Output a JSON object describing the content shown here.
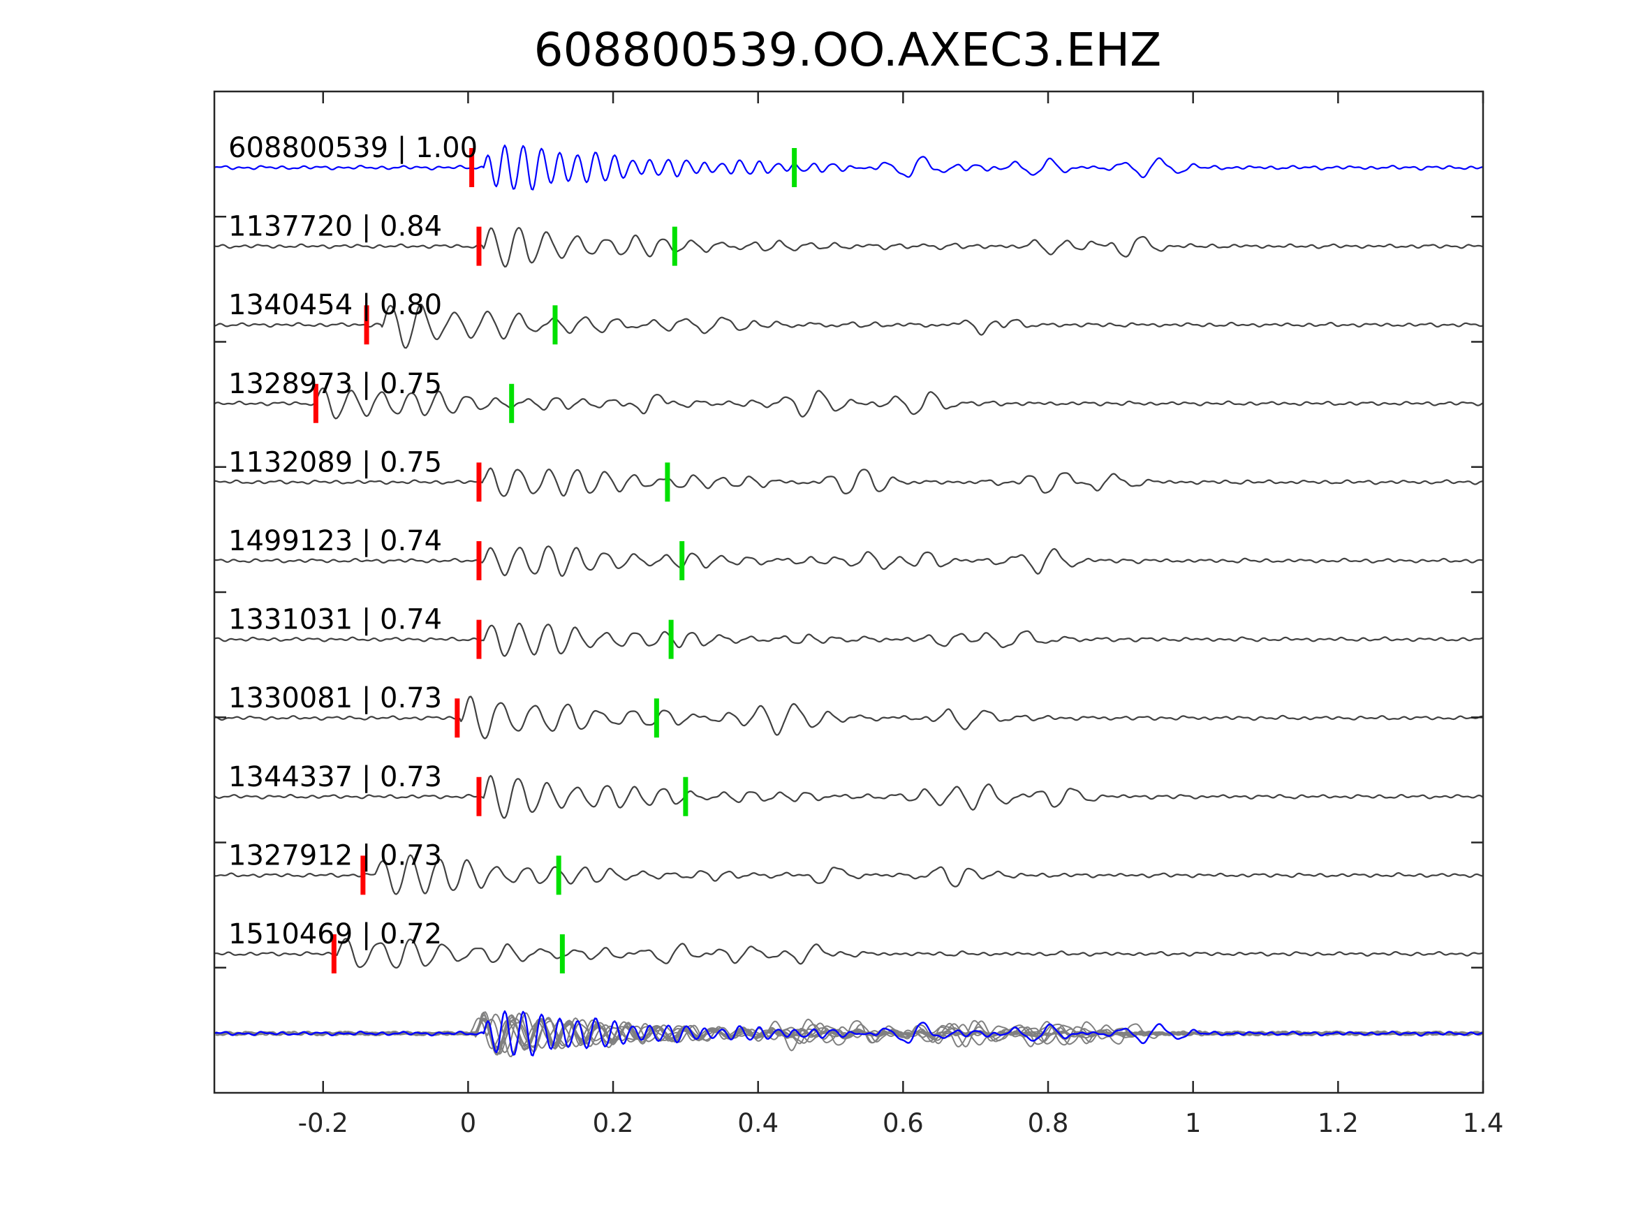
{
  "chart_data": {
    "type": "line",
    "title": "608800539.OO.AXEC3.EHZ",
    "xlabel": "",
    "ylabel": "",
    "xlim": [
      -0.35,
      1.4
    ],
    "x_ticks": [
      -0.2,
      0,
      0.2,
      0.4,
      0.6,
      0.8,
      1,
      1.2,
      1.4
    ],
    "x_tick_labels": [
      "-0.2",
      "0",
      "0.2",
      "0.4",
      "0.6",
      "0.8",
      "1",
      "1.2",
      "1.4"
    ],
    "grid": false,
    "legend": "none",
    "colors": {
      "template": "#0000ff",
      "match": "#404040",
      "stack_match": "#808080",
      "p_pick": "#ff0000",
      "s_pick": "#00e000"
    },
    "traces": [
      {
        "id": "608800539",
        "cc": "1.00",
        "label": "608800539 | 1.00",
        "p_pick": 0.005,
        "s_pick": 0.45,
        "onset": 0.02,
        "period": 0.025,
        "amplitude": 1.0,
        "color": "template"
      },
      {
        "id": "1137720",
        "cc": "0.84",
        "label": "1137720 | 0.84",
        "p_pick": 0.015,
        "s_pick": 0.285,
        "onset": 0.02,
        "period": 0.04,
        "amplitude": 0.8,
        "color": "match"
      },
      {
        "id": "1340454",
        "cc": "0.80",
        "label": "1340454 | 0.80",
        "p_pick": -0.14,
        "s_pick": 0.12,
        "onset": -0.12,
        "period": 0.045,
        "amplitude": 0.9,
        "color": "match"
      },
      {
        "id": "1328973",
        "cc": "0.75",
        "label": "1328973 | 0.75",
        "p_pick": -0.21,
        "s_pick": 0.06,
        "onset": -0.21,
        "period": 0.04,
        "amplitude": 0.75,
        "color": "match"
      },
      {
        "id": "1132089",
        "cc": "0.75",
        "label": "1132089 | 0.75",
        "p_pick": 0.015,
        "s_pick": 0.275,
        "onset": 0.02,
        "period": 0.04,
        "amplitude": 0.75,
        "color": "match"
      },
      {
        "id": "1499123",
        "cc": "0.74",
        "label": "1499123 | 0.74",
        "p_pick": 0.015,
        "s_pick": 0.295,
        "onset": 0.02,
        "period": 0.04,
        "amplitude": 0.75,
        "color": "match"
      },
      {
        "id": "1331031",
        "cc": "0.74",
        "label": "1331031 | 0.74",
        "p_pick": 0.015,
        "s_pick": 0.28,
        "onset": 0.02,
        "period": 0.04,
        "amplitude": 0.75,
        "color": "match"
      },
      {
        "id": "1330081",
        "cc": "0.73",
        "label": "1330081 | 0.73",
        "p_pick": -0.015,
        "s_pick": 0.26,
        "onset": -0.01,
        "period": 0.045,
        "amplitude": 0.85,
        "color": "match"
      },
      {
        "id": "1344337",
        "cc": "0.73",
        "label": "1344337 | 0.73",
        "p_pick": 0.015,
        "s_pick": 0.3,
        "onset": 0.02,
        "period": 0.04,
        "amplitude": 0.85,
        "color": "match"
      },
      {
        "id": "1327912",
        "cc": "0.73",
        "label": "1327912 | 0.73",
        "p_pick": -0.145,
        "s_pick": 0.125,
        "onset": -0.13,
        "period": 0.04,
        "amplitude": 0.9,
        "color": "match"
      },
      {
        "id": "1510469",
        "cc": "0.72",
        "label": "1510469 | 0.72",
        "p_pick": -0.185,
        "s_pick": 0.13,
        "onset": -0.18,
        "period": 0.045,
        "amplitude": 0.75,
        "color": "match"
      }
    ]
  }
}
